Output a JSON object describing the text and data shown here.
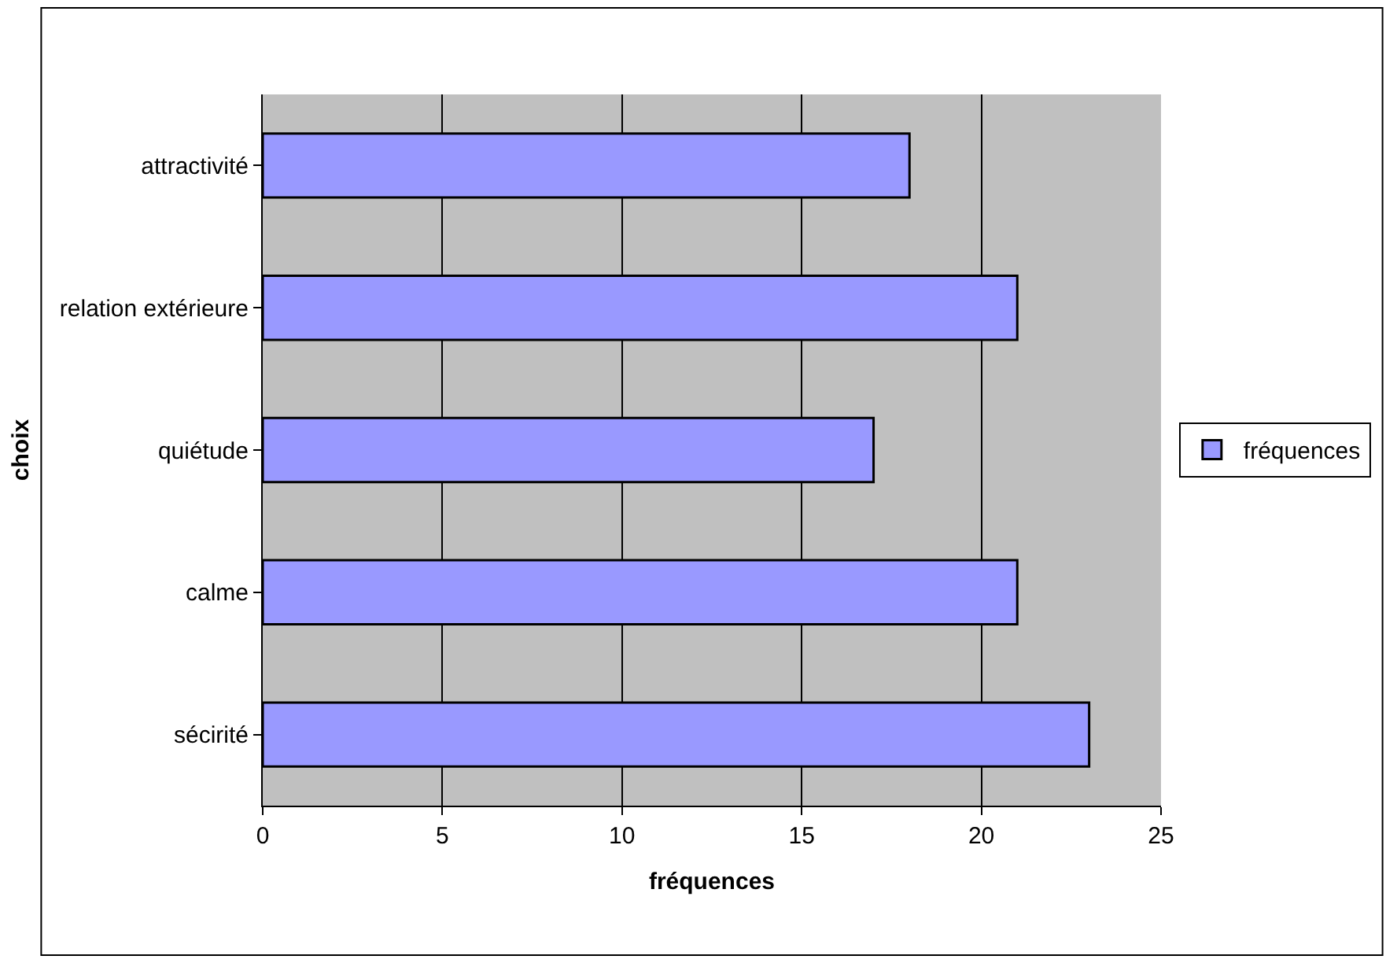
{
  "chart_data": {
    "type": "bar",
    "orientation": "horizontal",
    "xlabel": "fréquences",
    "ylabel": "choix",
    "categories": [
      "attractivité",
      "relation extérieure",
      "quiétude",
      "calme",
      "sécirité"
    ],
    "series": [
      {
        "name": "fréquences",
        "color": "#9999ff",
        "values": [
          18,
          21,
          17,
          21,
          23
        ]
      }
    ],
    "xlim": [
      0,
      25
    ],
    "xticks": [
      0,
      5,
      10,
      15,
      20,
      25
    ],
    "grid": "x",
    "legend": "right"
  }
}
